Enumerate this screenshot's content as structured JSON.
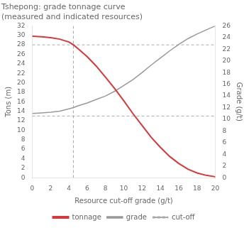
{
  "chart_data": {
    "type": "line",
    "title": "Tshepong: grade tonnage curve\n(measured and indicated resources)",
    "x_label": "Resource cut-off grade (g/t)",
    "y_label": "Tons (m)",
    "y2_label": "Grade (g/t)",
    "xlim": [
      0,
      20
    ],
    "xticks": [
      0,
      2,
      4,
      6,
      8,
      10,
      12,
      14,
      16,
      18,
      20
    ],
    "ylim": [
      0,
      32
    ],
    "yticks": [
      0,
      2,
      4,
      6,
      8,
      10,
      12,
      14,
      16,
      18,
      20,
      22,
      24,
      26,
      28,
      30,
      32
    ],
    "y2lim": [
      0,
      26
    ],
    "y2ticks": [
      0,
      2,
      4,
      6,
      8,
      10,
      12,
      14,
      16,
      18,
      20,
      22,
      24,
      26
    ],
    "x": [
      0,
      1,
      2,
      3,
      4,
      4.5,
      5,
      6,
      7,
      8,
      9,
      10,
      11,
      12,
      13,
      14,
      15,
      16,
      17,
      18,
      19,
      20
    ],
    "series": [
      {
        "name": "tonnage",
        "color": "#d9373a",
        "values": [
          29.8,
          29.7,
          29.5,
          29.2,
          28.6,
          28.0,
          27.2,
          25.5,
          23.5,
          21.2,
          18.8,
          16.2,
          13.5,
          11.0,
          8.5,
          6.4,
          4.5,
          3.0,
          1.8,
          1.0,
          0.5,
          0.2
        ]
      },
      {
        "name": "grade",
        "color": "#999999",
        "axis": "y2",
        "values": [
          11.0,
          11.1,
          11.2,
          11.4,
          11.8,
          12.0,
          12.3,
          12.8,
          13.4,
          14.0,
          14.8,
          15.8,
          16.8,
          18.0,
          19.3,
          20.5,
          21.7,
          22.8,
          23.8,
          24.6,
          25.3,
          26.0
        ]
      }
    ],
    "reference_lines": {
      "name": "cut-off",
      "color": "#aaaaaa",
      "line_style": "dashed",
      "x": [
        4.5
      ],
      "y": [
        13.0,
        28.0
      ]
    },
    "grid": false,
    "legend": "bottom"
  }
}
